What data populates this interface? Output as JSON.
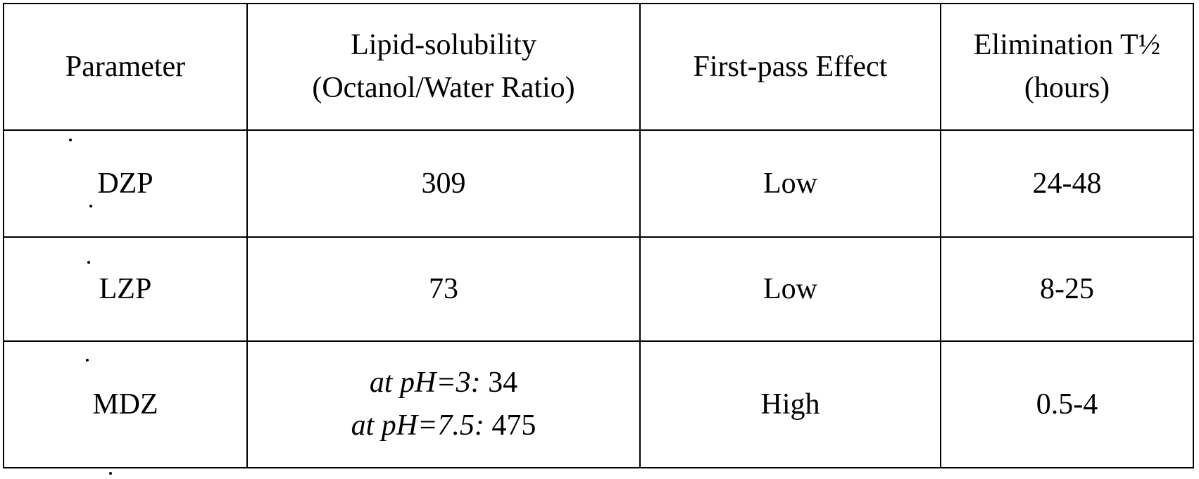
{
  "table": {
    "headers": [
      {
        "lines": [
          "Parameter"
        ]
      },
      {
        "lines": [
          "Lipid-solubility",
          "(Octanol/Water Ratio)"
        ]
      },
      {
        "lines": [
          "First-pass Effect"
        ]
      },
      {
        "lines": [
          "Elimination T½",
          "(hours)"
        ]
      }
    ],
    "rows": [
      {
        "parameter": "DZP",
        "lipid_solubility": "309",
        "first_pass": "Low",
        "elimination": "24-48"
      },
      {
        "parameter": "LZP",
        "lipid_solubility": "73",
        "first_pass": "Low",
        "elimination": "8-25"
      },
      {
        "parameter": "MDZ",
        "lipid_solubility_lines": [
          {
            "condition": "at pH=3:",
            "value": "34"
          },
          {
            "condition": "at pH=7.5:",
            "value": "475"
          }
        ],
        "first_pass": "High",
        "elimination": "0.5-4"
      }
    ]
  }
}
